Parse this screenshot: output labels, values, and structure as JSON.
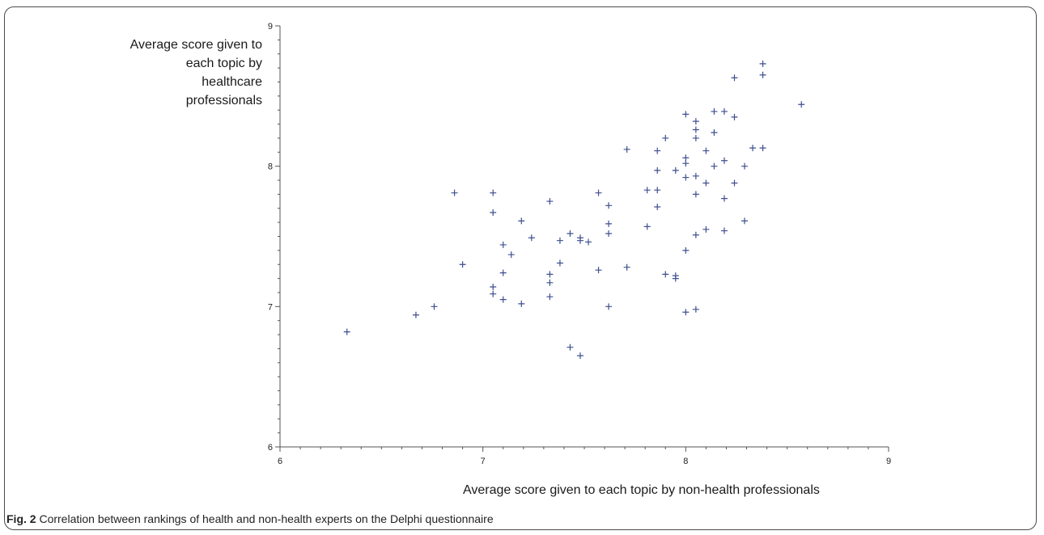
{
  "chart_data": {
    "type": "scatter",
    "title": "",
    "xlabel": "Average score given to each topic by non-health professionals",
    "ylabel": "Average score given to each topic by healthcare professionals",
    "xlim": [
      6,
      9
    ],
    "ylim": [
      6,
      9
    ],
    "xticks": [
      "6",
      "7",
      "8",
      "9"
    ],
    "yticks": [
      "6",
      "7",
      "8",
      "9"
    ],
    "grid": false,
    "marker": "+",
    "marker_color": "#3e4f8f",
    "points": [
      [
        6.33,
        6.82
      ],
      [
        6.67,
        6.94
      ],
      [
        6.76,
        7.0
      ],
      [
        6.86,
        7.81
      ],
      [
        6.9,
        7.3
      ],
      [
        7.05,
        7.81
      ],
      [
        7.05,
        7.67
      ],
      [
        7.05,
        7.14
      ],
      [
        7.05,
        7.09
      ],
      [
        7.1,
        7.44
      ],
      [
        7.1,
        7.24
      ],
      [
        7.1,
        7.05
      ],
      [
        7.14,
        7.37
      ],
      [
        7.19,
        7.61
      ],
      [
        7.19,
        7.02
      ],
      [
        7.24,
        7.49
      ],
      [
        7.33,
        7.75
      ],
      [
        7.33,
        7.23
      ],
      [
        7.33,
        7.17
      ],
      [
        7.33,
        7.07
      ],
      [
        7.38,
        7.47
      ],
      [
        7.38,
        7.31
      ],
      [
        7.43,
        7.52
      ],
      [
        7.43,
        6.71
      ],
      [
        7.48,
        7.49
      ],
      [
        7.48,
        7.47
      ],
      [
        7.48,
        6.65
      ],
      [
        7.52,
        7.46
      ],
      [
        7.57,
        7.81
      ],
      [
        7.57,
        7.26
      ],
      [
        7.62,
        7.72
      ],
      [
        7.62,
        7.59
      ],
      [
        7.62,
        7.52
      ],
      [
        7.62,
        7.0
      ],
      [
        7.71,
        8.12
      ],
      [
        7.71,
        7.28
      ],
      [
        7.81,
        7.83
      ],
      [
        7.81,
        7.57
      ],
      [
        7.86,
        8.11
      ],
      [
        7.86,
        7.97
      ],
      [
        7.86,
        7.83
      ],
      [
        7.86,
        7.71
      ],
      [
        7.9,
        8.2
      ],
      [
        7.9,
        7.23
      ],
      [
        7.95,
        7.97
      ],
      [
        7.95,
        7.22
      ],
      [
        7.95,
        7.2
      ],
      [
        8.0,
        8.37
      ],
      [
        8.0,
        8.06
      ],
      [
        8.0,
        8.02
      ],
      [
        8.0,
        7.92
      ],
      [
        8.0,
        7.4
      ],
      [
        8.0,
        6.96
      ],
      [
        8.05,
        8.32
      ],
      [
        8.05,
        8.26
      ],
      [
        8.05,
        8.2
      ],
      [
        8.05,
        7.93
      ],
      [
        8.05,
        7.8
      ],
      [
        8.05,
        7.51
      ],
      [
        8.05,
        6.98
      ],
      [
        8.1,
        8.11
      ],
      [
        8.1,
        7.88
      ],
      [
        8.1,
        7.55
      ],
      [
        8.14,
        8.39
      ],
      [
        8.14,
        8.24
      ],
      [
        8.14,
        8.0
      ],
      [
        8.19,
        8.39
      ],
      [
        8.19,
        8.04
      ],
      [
        8.19,
        7.77
      ],
      [
        8.19,
        7.54
      ],
      [
        8.24,
        8.63
      ],
      [
        8.24,
        8.35
      ],
      [
        8.24,
        7.88
      ],
      [
        8.29,
        8.0
      ],
      [
        8.29,
        7.61
      ],
      [
        8.33,
        8.13
      ],
      [
        8.38,
        8.73
      ],
      [
        8.38,
        8.65
      ],
      [
        8.38,
        8.13
      ],
      [
        8.57,
        8.44
      ]
    ]
  },
  "caption": {
    "label": "Fig. 2",
    "text": " Correlation between rankings of health and non-health experts on the Delphi questionnaire"
  }
}
